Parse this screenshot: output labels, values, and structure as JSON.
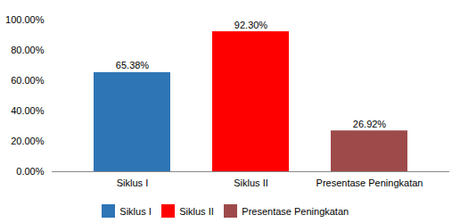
{
  "chart_data": {
    "type": "bar",
    "categories": [
      "Siklus I",
      "Siklus II",
      "Presentase Peningkatan"
    ],
    "values": [
      65.38,
      92.3,
      26.92
    ],
    "value_labels": [
      "65.38%",
      "92.30%",
      "26.92%"
    ],
    "colors": [
      "#2E75B6",
      "#FF0000",
      "#9E4A4A"
    ],
    "ylim": [
      0,
      100
    ],
    "yticks": [
      {
        "value": 0,
        "label": "0.00%"
      },
      {
        "value": 20,
        "label": "20.00%"
      },
      {
        "value": 40,
        "label": "40.00%"
      },
      {
        "value": 60,
        "label": "60.00%"
      },
      {
        "value": 80,
        "label": "80.00%"
      },
      {
        "value": 100,
        "label": "100.00%"
      }
    ],
    "grid": false,
    "legend": "bottom",
    "data_labels": true
  }
}
